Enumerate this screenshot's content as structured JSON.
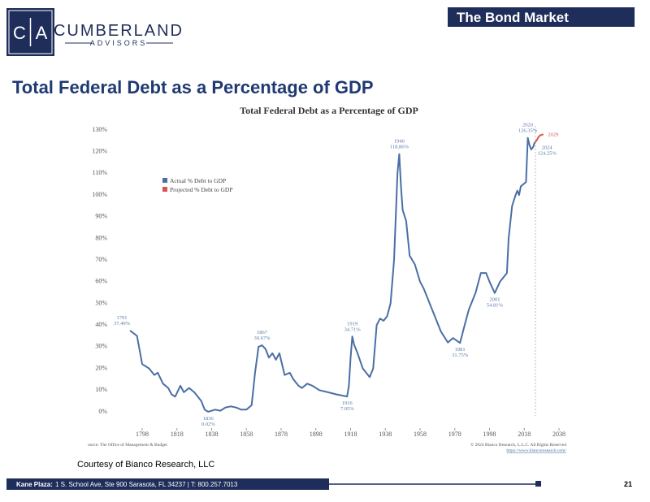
{
  "header": {
    "logo_left": "C",
    "logo_right": "A",
    "brand": "CUMBERLAND",
    "sub_brand": "ADVISORS",
    "section": "The Bond Market",
    "slide_title": "Total Federal Debt as a Percentage of GDP"
  },
  "chart_data": {
    "type": "line",
    "title": "Total Federal Debt as a Percentage of GDP",
    "xlim": [
      1780,
      2045
    ],
    "xticks": [
      1798,
      1818,
      1838,
      1858,
      1878,
      1898,
      1918,
      1938,
      1958,
      1978,
      1998,
      2018,
      2038
    ],
    "ylim": [
      -5,
      130
    ],
    "yticks": [
      {
        "value": 0,
        "label": "0%"
      },
      {
        "value": 10,
        "label": "10%"
      },
      {
        "value": 20,
        "label": "20%"
      },
      {
        "value": 30,
        "label": "30%"
      },
      {
        "value": 40,
        "label": "40%"
      },
      {
        "value": 50,
        "label": "50%"
      },
      {
        "value": 60,
        "label": "60%"
      },
      {
        "value": 70,
        "label": "70%"
      },
      {
        "value": 80,
        "label": "80%"
      },
      {
        "value": 90,
        "label": "90%"
      },
      {
        "value": 100,
        "label": "100%"
      },
      {
        "value": 110,
        "label": "110%"
      },
      {
        "value": 120,
        "label": "120%"
      },
      {
        "value": 130,
        "label": "130%"
      }
    ],
    "grid": false,
    "series": [
      {
        "name": "Actual % Debt to GDP",
        "color": "#4a6fa5",
        "x": [
          1791,
          1795,
          1798,
          1802,
          1805,
          1807,
          1810,
          1813,
          1815,
          1817,
          1820,
          1822,
          1825,
          1828,
          1832,
          1834,
          1836,
          1840,
          1843,
          1846,
          1849,
          1852,
          1855,
          1858,
          1861,
          1863,
          1865,
          1867,
          1869,
          1871,
          1873,
          1875,
          1877,
          1880,
          1883,
          1885,
          1888,
          1890,
          1893,
          1896,
          1900,
          1905,
          1910,
          1913,
          1916,
          1917,
          1918,
          1919,
          1920,
          1922,
          1925,
          1929,
          1931,
          1933,
          1935,
          1937,
          1939,
          1941,
          1943,
          1944,
          1945,
          1946,
          1947,
          1948,
          1950,
          1952,
          1955,
          1958,
          1960,
          1965,
          1970,
          1974,
          1977,
          1981,
          1983,
          1986,
          1990,
          1993,
          1996,
          1998,
          2001,
          2004,
          2008,
          2009,
          2011,
          2013,
          2014,
          2015,
          2016,
          2019,
          2020,
          2021,
          2022,
          2023,
          2024
        ],
        "values": [
          37.49,
          35,
          22,
          20,
          17,
          18,
          13,
          11,
          8,
          7,
          12,
          9,
          11,
          9,
          5,
          1,
          0.02,
          1,
          0.5,
          2,
          2.5,
          2,
          1,
          1,
          3,
          18,
          30,
          30.67,
          29,
          25,
          27,
          24,
          27,
          17,
          18,
          15,
          12,
          11,
          13,
          12,
          10,
          9,
          8,
          7.5,
          7.05,
          12,
          25,
          34.71,
          31,
          27,
          20,
          16,
          20,
          40,
          43,
          42,
          44,
          50,
          70,
          90,
          110,
          118.86,
          104,
          93,
          88,
          72,
          68,
          60,
          57,
          47,
          37,
          32,
          34,
          31.75,
          38,
          47,
          55,
          64,
          64,
          60,
          54.81,
          60,
          64,
          80,
          95,
          100,
          102,
          100,
          104,
          106,
          126.35,
          123,
          121,
          122,
          124.25
        ]
      },
      {
        "name": "Projected % Debt to GDP",
        "color": "#d9534f",
        "x": [
          2024,
          2025,
          2026,
          2027,
          2029
        ],
        "values": [
          124.25,
          125,
          126.5,
          127.5,
          128
        ]
      }
    ],
    "legend": "upper left",
    "annotations": [
      {
        "year": "1791",
        "value": "37.49%"
      },
      {
        "year": "1836",
        "value": "0.02%"
      },
      {
        "year": "1867",
        "value": "30.67%"
      },
      {
        "year": "1916",
        "value": "7.05%"
      },
      {
        "year": "1919",
        "value": "34.71%"
      },
      {
        "year": "1946",
        "value": "118.86%"
      },
      {
        "year": "1981",
        "value": "31.75%"
      },
      {
        "year": "2001",
        "value": "54.81%"
      },
      {
        "year": "2020",
        "value": "126.35%"
      },
      {
        "year": "2024",
        "value": "124.25%"
      },
      {
        "year": "2029"
      }
    ],
    "source": "ource: The Office of Management & Budget",
    "copyright": "© 2024 Bianco Research, L.L.C. All Rights Reserved",
    "url": "https://www.biancoresearch.com/"
  },
  "courtesy": "Courtesy of Bianco Research, LLC",
  "footer": {
    "location": "Kane Plaza:",
    "address": "1 S. School Ave, Ste 900  Sarasota, FL 34237   |   T: 800.257.7013",
    "page": "21"
  }
}
